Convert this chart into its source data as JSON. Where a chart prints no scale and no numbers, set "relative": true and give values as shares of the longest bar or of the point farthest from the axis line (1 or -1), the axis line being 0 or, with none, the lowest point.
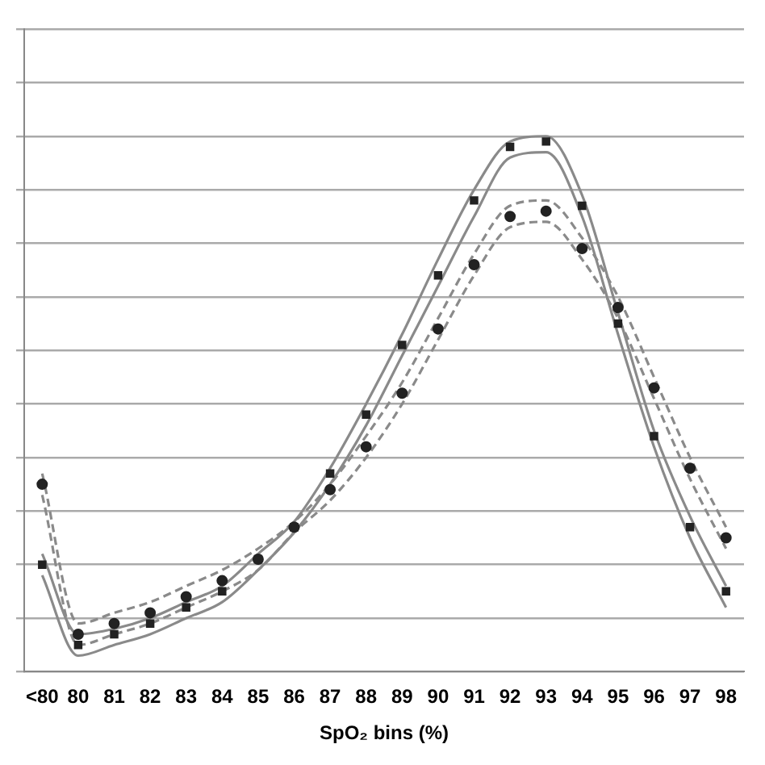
{
  "chart_data": {
    "type": "scatter",
    "xlabel": "SpO₂ bins (%)",
    "relative": true,
    "grid": "y",
    "legend": false,
    "categories": [
      "<80",
      "80",
      "81",
      "82",
      "83",
      "84",
      "85",
      "86",
      "87",
      "88",
      "89",
      "90",
      "91",
      "92",
      "93",
      "94",
      "95",
      "96",
      "97",
      "98"
    ],
    "series": [
      {
        "color": "#222222",
        "marker": "square",
        "values": [
          0.2,
          0.05,
          0.07,
          0.09,
          0.12,
          0.15,
          0.21,
          0.27,
          0.37,
          0.48,
          0.61,
          0.74,
          0.88,
          0.98,
          0.99,
          0.87,
          0.65,
          0.44,
          0.27,
          0.15
        ]
      },
      {
        "type": "line",
        "color": "#8a8a8a",
        "marker": "none",
        "line_style": "solid",
        "values": [
          0.22,
          0.07,
          0.08,
          0.1,
          0.13,
          0.16,
          0.22,
          0.28,
          0.38,
          0.5,
          0.63,
          0.77,
          0.9,
          0.99,
          1.0,
          0.89,
          0.67,
          0.45,
          0.29,
          0.16
        ]
      },
      {
        "type": "line",
        "color": "#8a8a8a",
        "marker": "none",
        "line_style": "solid",
        "values": [
          0.18,
          0.03,
          0.05,
          0.07,
          0.1,
          0.13,
          0.19,
          0.26,
          0.35,
          0.46,
          0.59,
          0.72,
          0.85,
          0.96,
          0.97,
          0.85,
          0.63,
          0.42,
          0.25,
          0.12
        ]
      },
      {
        "color": "#222222",
        "marker": "circle",
        "values": [
          0.35,
          0.07,
          0.09,
          0.11,
          0.14,
          0.17,
          0.21,
          0.27,
          0.34,
          0.42,
          0.52,
          0.64,
          0.76,
          0.85,
          0.86,
          0.79,
          0.68,
          0.53,
          0.38,
          0.25
        ]
      },
      {
        "type": "line",
        "color": "#8a8a8a",
        "marker": "none",
        "line_style": "dashed",
        "values": [
          0.37,
          0.09,
          0.11,
          0.13,
          0.16,
          0.19,
          0.23,
          0.28,
          0.35,
          0.44,
          0.54,
          0.66,
          0.78,
          0.87,
          0.88,
          0.81,
          0.7,
          0.55,
          0.4,
          0.27
        ]
      },
      {
        "type": "line",
        "color": "#8a8a8a",
        "marker": "none",
        "line_style": "dashed",
        "values": [
          0.33,
          0.05,
          0.07,
          0.09,
          0.12,
          0.15,
          0.19,
          0.26,
          0.32,
          0.4,
          0.5,
          0.62,
          0.74,
          0.83,
          0.84,
          0.77,
          0.66,
          0.51,
          0.36,
          0.23
        ]
      }
    ]
  }
}
